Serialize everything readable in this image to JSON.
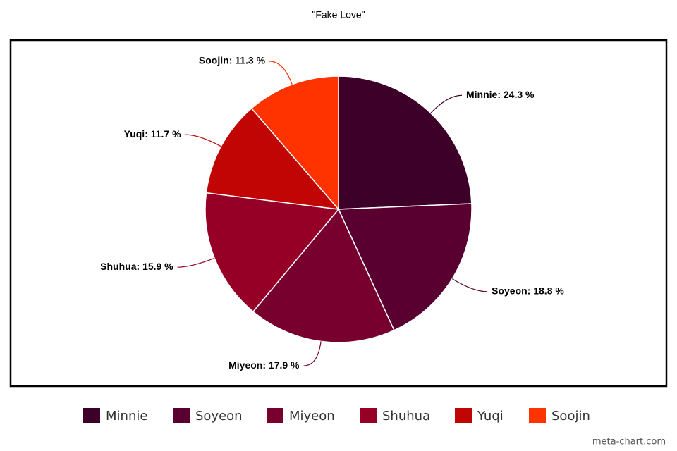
{
  "chart_data": {
    "type": "pie",
    "title": "\"Fake Love\"",
    "categories": [
      "Minnie",
      "Soyeon",
      "Miyeon",
      "Shuhua",
      "Yuqi",
      "Soojin"
    ],
    "values": [
      24.3,
      18.8,
      17.9,
      15.9,
      11.7,
      11.3
    ],
    "value_labels": [
      "Minnie: 24.3 %",
      "Soyeon: 18.8 %",
      "Miyeon: 17.9 %",
      "Shuhua: 15.9 %",
      "Yuqi: 11.7 %",
      "Soojin: 11.3 %"
    ],
    "colors": [
      "#3d0029",
      "#5a0030",
      "#77002f",
      "#970026",
      "#c10505",
      "#ff3300"
    ],
    "legend": "bottom",
    "credit": "meta-chart.com"
  }
}
